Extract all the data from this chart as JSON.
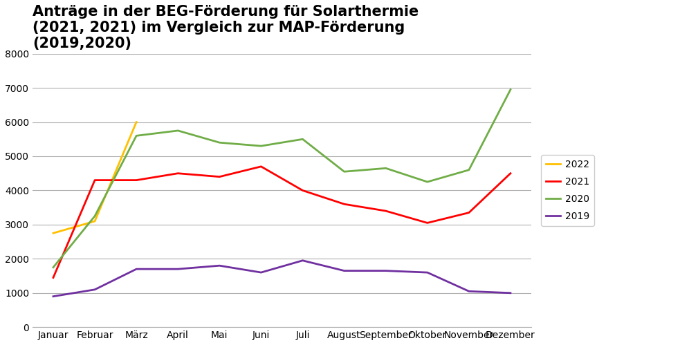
{
  "title": "Anträge in der BEG-Förderung für Solarthermie\n(2021, 2021) im Vergleich zur MAP-Förderung\n(2019,2020)",
  "months": [
    "Januar",
    "Februar",
    "März",
    "April",
    "Mai",
    "Juni",
    "Juli",
    "August",
    "September",
    "Oktober",
    "November",
    "Dezember"
  ],
  "series_order": [
    "2022",
    "2021",
    "2020",
    "2019"
  ],
  "series": {
    "2022": [
      2750,
      3100,
      6000,
      null,
      null,
      null,
      null,
      null,
      null,
      null,
      null,
      null
    ],
    "2021": [
      1450,
      4300,
      4300,
      4500,
      4400,
      4700,
      4000,
      3600,
      3400,
      3050,
      3350,
      4500
    ],
    "2020": [
      1750,
      3250,
      5600,
      5750,
      5400,
      5300,
      5500,
      4550,
      4650,
      4250,
      4600,
      6950
    ],
    "2019": [
      900,
      1100,
      1700,
      1700,
      1800,
      1600,
      1950,
      1650,
      1650,
      1600,
      1050,
      1000
    ]
  },
  "colors": {
    "2022": "#FFC000",
    "2021": "#FF0000",
    "2020": "#70AD47",
    "2019": "#7030A0"
  },
  "ylim": [
    0,
    8000
  ],
  "yticks": [
    0,
    1000,
    2000,
    3000,
    4000,
    5000,
    6000,
    7000,
    8000
  ],
  "background_color": "#FFFFFF",
  "title_fontsize": 15,
  "axis_fontsize": 10,
  "legend_fontsize": 10,
  "linewidth": 2.0
}
